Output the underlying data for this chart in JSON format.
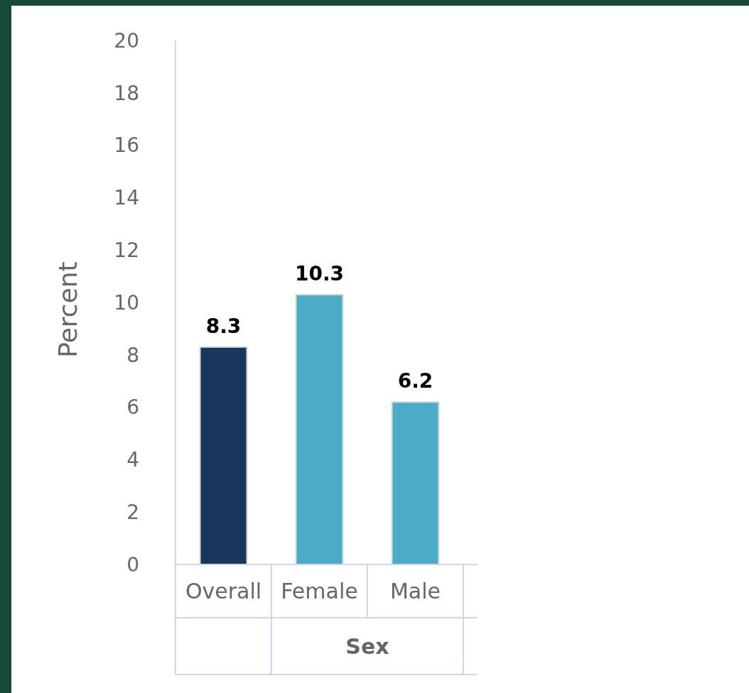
{
  "chart_data": {
    "type": "bar",
    "ylabel": "Percent",
    "xlabel": "Sex",
    "categories": [
      "Overall",
      "Female",
      "Male"
    ],
    "values": [
      8.3,
      10.3,
      6.2
    ],
    "colors": [
      "#19375c",
      "#4aacc6",
      "#4aacc6"
    ],
    "ylim": [
      0,
      20
    ],
    "yticks": [
      0,
      2,
      4,
      6,
      8,
      10,
      12,
      14,
      16,
      18,
      20
    ],
    "data_labels": true,
    "grid": false
  }
}
